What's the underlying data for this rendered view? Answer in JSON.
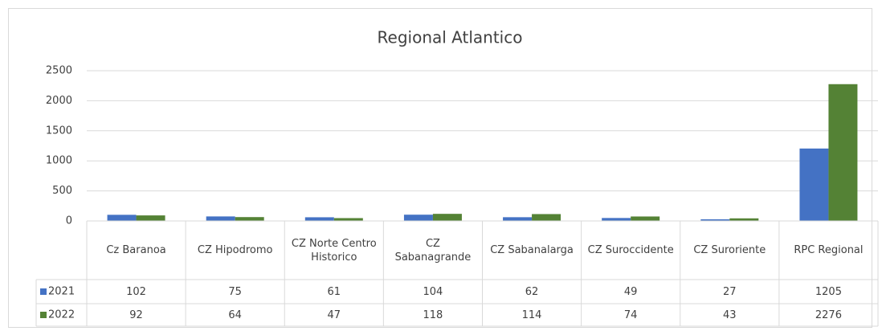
{
  "chart_data": {
    "type": "bar",
    "title": "Regional Atlantico",
    "categories": [
      "Cz Baranoa",
      "CZ Hipodromo",
      "CZ Norte Centro Historico",
      "CZ Sabanagrande",
      "CZ Sabanalarga",
      "CZ Suroccidente",
      "CZ Suroriente",
      "RPC Regional"
    ],
    "series": [
      {
        "name": "2021",
        "color": "#4472c4",
        "values": [
          102,
          75,
          61,
          104,
          62,
          49,
          27,
          1205
        ]
      },
      {
        "name": "2022",
        "color": "#548235",
        "values": [
          92,
          64,
          47,
          118,
          114,
          74,
          43,
          2276
        ]
      }
    ],
    "ylim": [
      0,
      2500
    ],
    "yticks": [
      0,
      500,
      1000,
      1500,
      2000,
      2500
    ],
    "grid": true
  }
}
